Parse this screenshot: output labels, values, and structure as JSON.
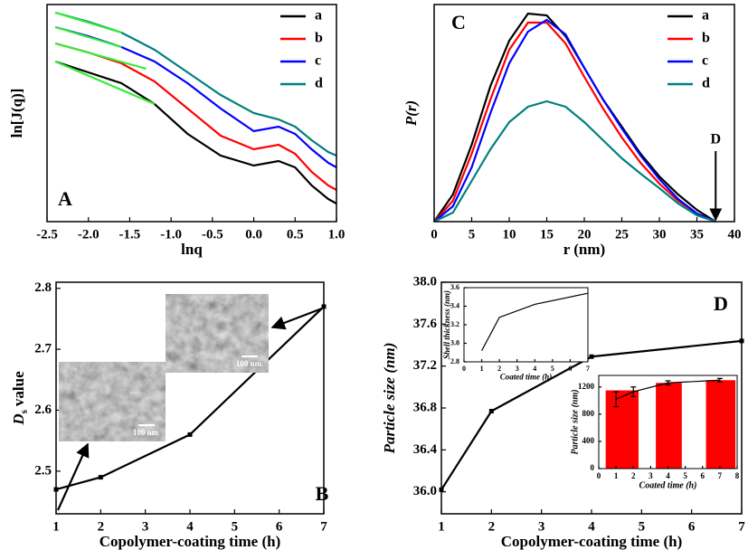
{
  "chart_data": [
    {
      "type": "line",
      "panel_label": "A",
      "xlabel": "lnq",
      "ylabel": "ln[J(q)]",
      "xlim": [
        -2.5,
        1.0
      ],
      "xticks": [
        -2.5,
        {
          "value": -2,
          "label": "-2.0"
        },
        -1.5,
        {
          "value": -1,
          "label": "-1.0"
        },
        -0.5,
        {
          "value": 0,
          "label": "0.0"
        },
        0.5,
        {
          "value": 1,
          "label": "1.0"
        }
      ],
      "ylim": [
        0,
        24
      ],
      "legend": "upper right",
      "x": [
        -2.4,
        -2.0,
        -1.6,
        -1.2,
        -0.8,
        -0.4,
        0,
        0.3,
        0.5,
        0.7,
        0.9,
        1.0
      ],
      "series": [
        {
          "name": "a",
          "color": "#000000",
          "values": [
            17.7,
            16.5,
            15.3,
            13.0,
            9.7,
            7.3,
            6.2,
            6.7,
            6.0,
            4.0,
            2.5,
            2.0
          ]
        },
        {
          "name": "b",
          "color": "#ff0000",
          "values": [
            19.7,
            18.7,
            17.5,
            15.5,
            12.5,
            9.5,
            8.0,
            8.5,
            7.5,
            5.5,
            4.0,
            3.5
          ]
        },
        {
          "name": "c",
          "color": "#0000ff",
          "values": [
            21.5,
            20.5,
            19.3,
            17.7,
            15.3,
            12.5,
            10.0,
            10.5,
            9.7,
            8.0,
            6.5,
            6.0
          ]
        },
        {
          "name": "d",
          "color": "#008080",
          "values": [
            23.1,
            22.1,
            20.9,
            19.0,
            16.5,
            14.0,
            12.0,
            11.3,
            10.5,
            9.0,
            7.7,
            7.3
          ]
        },
        {
          "color": "#33ee33",
          "x": [
            -2.4,
            -1.2
          ],
          "values": [
            17.7,
            13.0
          ]
        },
        {
          "color": "#33ee33",
          "x": [
            -2.4,
            -1.3
          ],
          "values": [
            19.7,
            16.9
          ]
        },
        {
          "color": "#33ee33",
          "x": [
            -2.4,
            -1.6
          ],
          "values": [
            21.5,
            19.3
          ]
        },
        {
          "color": "#33ee33",
          "x": [
            -2.4,
            -1.6
          ],
          "values": [
            23.1,
            20.9
          ]
        }
      ]
    },
    {
      "type": "line",
      "panel_label": "C",
      "xlabel": "r (nm)",
      "ylabel": "P(r)",
      "annotation": "D",
      "xlim": [
        0,
        40
      ],
      "xticks": [
        0,
        5,
        10,
        15,
        20,
        25,
        30,
        35,
        40
      ],
      "ylim": [
        0,
        24
      ],
      "legend": "upper right",
      "x": [
        0,
        2.5,
        5,
        7.5,
        10,
        12.5,
        15,
        17.5,
        20,
        22.5,
        25,
        27.5,
        30,
        32.5,
        35,
        37.5
      ],
      "series": [
        {
          "name": "a",
          "color": "#000000",
          "values": [
            0,
            3.0,
            8.5,
            15.0,
            20.0,
            23.0,
            22.8,
            20.5,
            17.0,
            13.5,
            10.5,
            7.5,
            5.0,
            3.0,
            1.3,
            0
          ]
        },
        {
          "name": "b",
          "color": "#ff0000",
          "values": [
            0,
            2.3,
            7.5,
            13.5,
            19.0,
            22.0,
            22.0,
            19.7,
            16.0,
            12.5,
            9.3,
            6.5,
            4.2,
            2.3,
            0.9,
            0
          ]
        },
        {
          "name": "c",
          "color": "#0000ff",
          "values": [
            0,
            1.7,
            6.0,
            12.0,
            17.5,
            21.0,
            22.3,
            20.7,
            17.0,
            13.5,
            10.3,
            7.3,
            4.7,
            2.5,
            0.9,
            0
          ]
        },
        {
          "name": "d",
          "color": "#008080",
          "values": [
            0,
            1.0,
            4.5,
            8.0,
            11.0,
            12.7,
            13.3,
            12.7,
            11.0,
            9.0,
            7.0,
            5.3,
            3.7,
            2.0,
            0.7,
            0
          ]
        }
      ]
    },
    {
      "type": "line",
      "panel_label": "B",
      "xlabel": "Copolymer-coating time (h)",
      "ylabel": [
        "D",
        "s",
        "value"
      ],
      "xlim": [
        1,
        7
      ],
      "xticks": [
        1,
        2,
        3,
        4,
        5,
        6,
        7
      ],
      "ylim": [
        2.43,
        2.81
      ],
      "yticks": [
        2.5,
        2.6,
        2.7,
        2.8
      ],
      "markers": true,
      "x": [
        1,
        2,
        4,
        7
      ],
      "series": [
        {
          "color": "#000000",
          "values": [
            2.47,
            2.49,
            2.56,
            2.77
          ]
        }
      ],
      "images": [
        {
          "scale_label": "100 nm"
        },
        {
          "scale_label": "100 nm"
        }
      ]
    },
    {
      "type": "line",
      "panel_label": "D",
      "xlabel": "Copolymer-coating time (h)",
      "ylabel": "Particle size (nm)",
      "xlim": [
        1,
        7
      ],
      "xticks": [
        1,
        2,
        3,
        4,
        5,
        6,
        7
      ],
      "ylim": [
        35.79,
        38.0
      ],
      "yticks": [
        {
          "value": 36,
          "label": "36.0"
        },
        36.4,
        36.8,
        37.2,
        37.6,
        {
          "value": 38,
          "label": "38.0"
        }
      ],
      "markers": true,
      "x": [
        1,
        2,
        4,
        7
      ],
      "series": [
        {
          "color": "#000000",
          "values": [
            36.02,
            36.77,
            37.29,
            37.44
          ]
        }
      ]
    },
    {
      "type": "line",
      "xlabel": "Coated time (h)",
      "ylabel": "Shell thickness (nm)",
      "xlim": [
        0,
        7
      ],
      "xticks": [
        0,
        1,
        2,
        3,
        4,
        5,
        6,
        7
      ],
      "ylim": [
        2.8,
        3.6
      ],
      "yticks": [
        2.8,
        {
          "value": 3,
          "label": "3.0"
        },
        3.2,
        3.4,
        3.6
      ],
      "x": [
        1,
        2,
        4,
        7
      ],
      "series": [
        {
          "color": "#000000",
          "values": [
            2.92,
            3.28,
            3.42,
            3.54
          ]
        }
      ]
    },
    {
      "type": "bar",
      "xlabel": "Coated time (h)",
      "ylabel": "Particle size (nm)",
      "xlim": [
        0,
        8
      ],
      "xticks": [
        0,
        1,
        2,
        3,
        4,
        5,
        6,
        7,
        8
      ],
      "ylim": [
        0,
        1370
      ],
      "yticks": [
        0,
        400,
        800,
        1200
      ],
      "bars": {
        "color": "#ff0000",
        "x_edges": [
          [
            0.4,
            2.3
          ],
          [
            3.3,
            4.8
          ],
          [
            6.2,
            7.9
          ]
        ],
        "values": [
          1150,
          1260,
          1300
        ]
      },
      "x": [
        1,
        2,
        4,
        7
      ],
      "series": [
        {
          "color": "#000000",
          "values": [
            1020,
            1130,
            1260,
            1300
          ],
          "errors": [
            110,
            70,
            30,
            25
          ]
        }
      ]
    }
  ]
}
